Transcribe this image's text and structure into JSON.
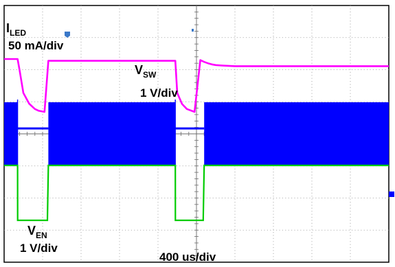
{
  "chart_data": {
    "type": "line",
    "title": "",
    "x_axis": {
      "label": "400 us/div",
      "divisions": 10,
      "range_us": [
        0,
        4000
      ]
    },
    "y_axis": {
      "divisions": 8,
      "grid": "dotted"
    },
    "grid": true,
    "series": [
      {
        "name": "I_LED",
        "label_main": "I",
        "label_sub": "LED",
        "scale": "50 mA/div",
        "color": "#ff00ff",
        "unit": "mA",
        "x": [
          0,
          140,
          160,
          200,
          260,
          320,
          360,
          420,
          460,
          1780,
          1800,
          1850,
          1900,
          1980,
          2040,
          2080,
          2120,
          2160,
          2200,
          2260,
          2330,
          2400,
          4000
        ],
        "y": [
          0,
          0,
          -30,
          -95,
          -125,
          -140,
          -145,
          -148,
          -5,
          -5,
          -95,
          -126,
          -140,
          -148,
          -3,
          -8,
          -12,
          -15,
          -17,
          -18,
          -19,
          -20,
          -20
        ]
      },
      {
        "name": "V_SW",
        "label_main": "V",
        "label_sub": "SW",
        "scale": "1 V/div",
        "color": "#0000ff",
        "unit": "V",
        "x": [
          0,
          140,
          460,
          1780,
          2080,
          4000
        ],
        "y_high": [
          2.05,
          2.05,
          2.05,
          2.05,
          2.05,
          2.05
        ],
        "y_low": [
          0.0,
          0.0,
          0.0,
          0.0,
          0.0,
          0.0
        ],
        "switching_off_intervals_us": [
          [
            140,
            460
          ],
          [
            1780,
            2080
          ]
        ],
        "off_level": 1.2
      },
      {
        "name": "V_EN",
        "label_main": "V",
        "label_sub": "EN",
        "scale": "1 V/div",
        "color": "#00cc00",
        "unit": "V",
        "x": [
          0,
          140,
          141,
          450,
          460,
          1780,
          1781,
          2070,
          2080,
          4000
        ],
        "y": [
          2.0,
          2.0,
          0.0,
          0.0,
          2.0,
          2.0,
          0.0,
          0.0,
          2.0,
          2.0
        ]
      }
    ]
  },
  "labels": {
    "iled_main": "I",
    "iled_sub": "LED",
    "iled_scale": "50 mA/div",
    "vsw_main": "V",
    "vsw_sub": "SW",
    "vsw_scale": "1 V/div",
    "ven_main": "V",
    "ven_sub": "EN",
    "ven_scale": "1 V/div",
    "time_scale": "400 us/div"
  }
}
